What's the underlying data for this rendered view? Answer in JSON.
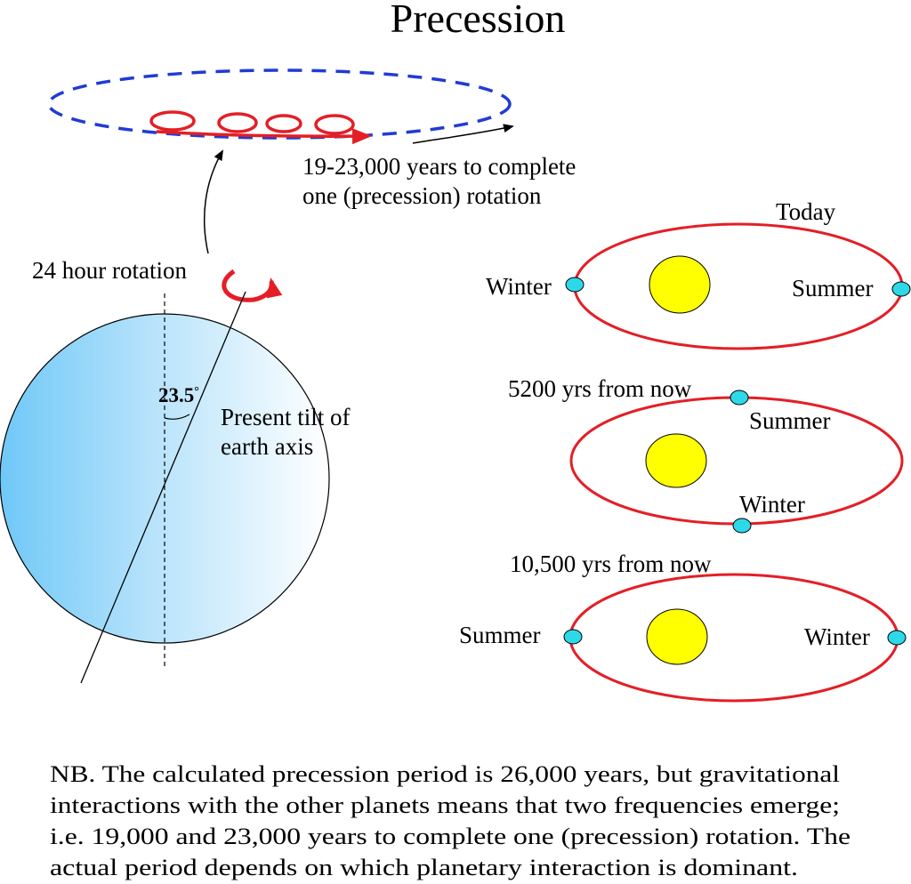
{
  "title": "Precession",
  "top_orbit": {
    "caption_line1": "19-23,000 years to complete",
    "caption_line2": "one (precession) rotation"
  },
  "earth": {
    "rotation_label": "24 hour rotation",
    "tilt_angle": "23.5",
    "tilt_degree_mark": "°",
    "tilt_label_line1": "Present tilt of",
    "tilt_label_line2": "earth axis"
  },
  "orbits": [
    {
      "heading": "Today",
      "left_label": "Winter",
      "right_label": "Summer"
    },
    {
      "heading": "5200 yrs from now",
      "top_label": "Summer",
      "bottom_label": "Winter"
    },
    {
      "heading": "10,500 yrs from now",
      "left_label": "Summer",
      "right_label": "Winter"
    }
  ],
  "note": [
    "NB. The calculated precession period is 26,000 years, but gravitational",
    "interactions with the other planets means that two frequencies emerge;",
    "i.e. 19,000 and 23,000 years to complete one (precession) rotation.  The",
    "actual period depends on which planetary interaction is dominant."
  ],
  "colors": {
    "orbit_red": "#e41e26",
    "dashed_blue": "#1f3bd6",
    "sun_yellow": "#ffff00",
    "earth_marker": "#2dd9e8",
    "earth_gradient_left": "#6fc8f7",
    "earth_gradient_right": "#ffffff"
  }
}
